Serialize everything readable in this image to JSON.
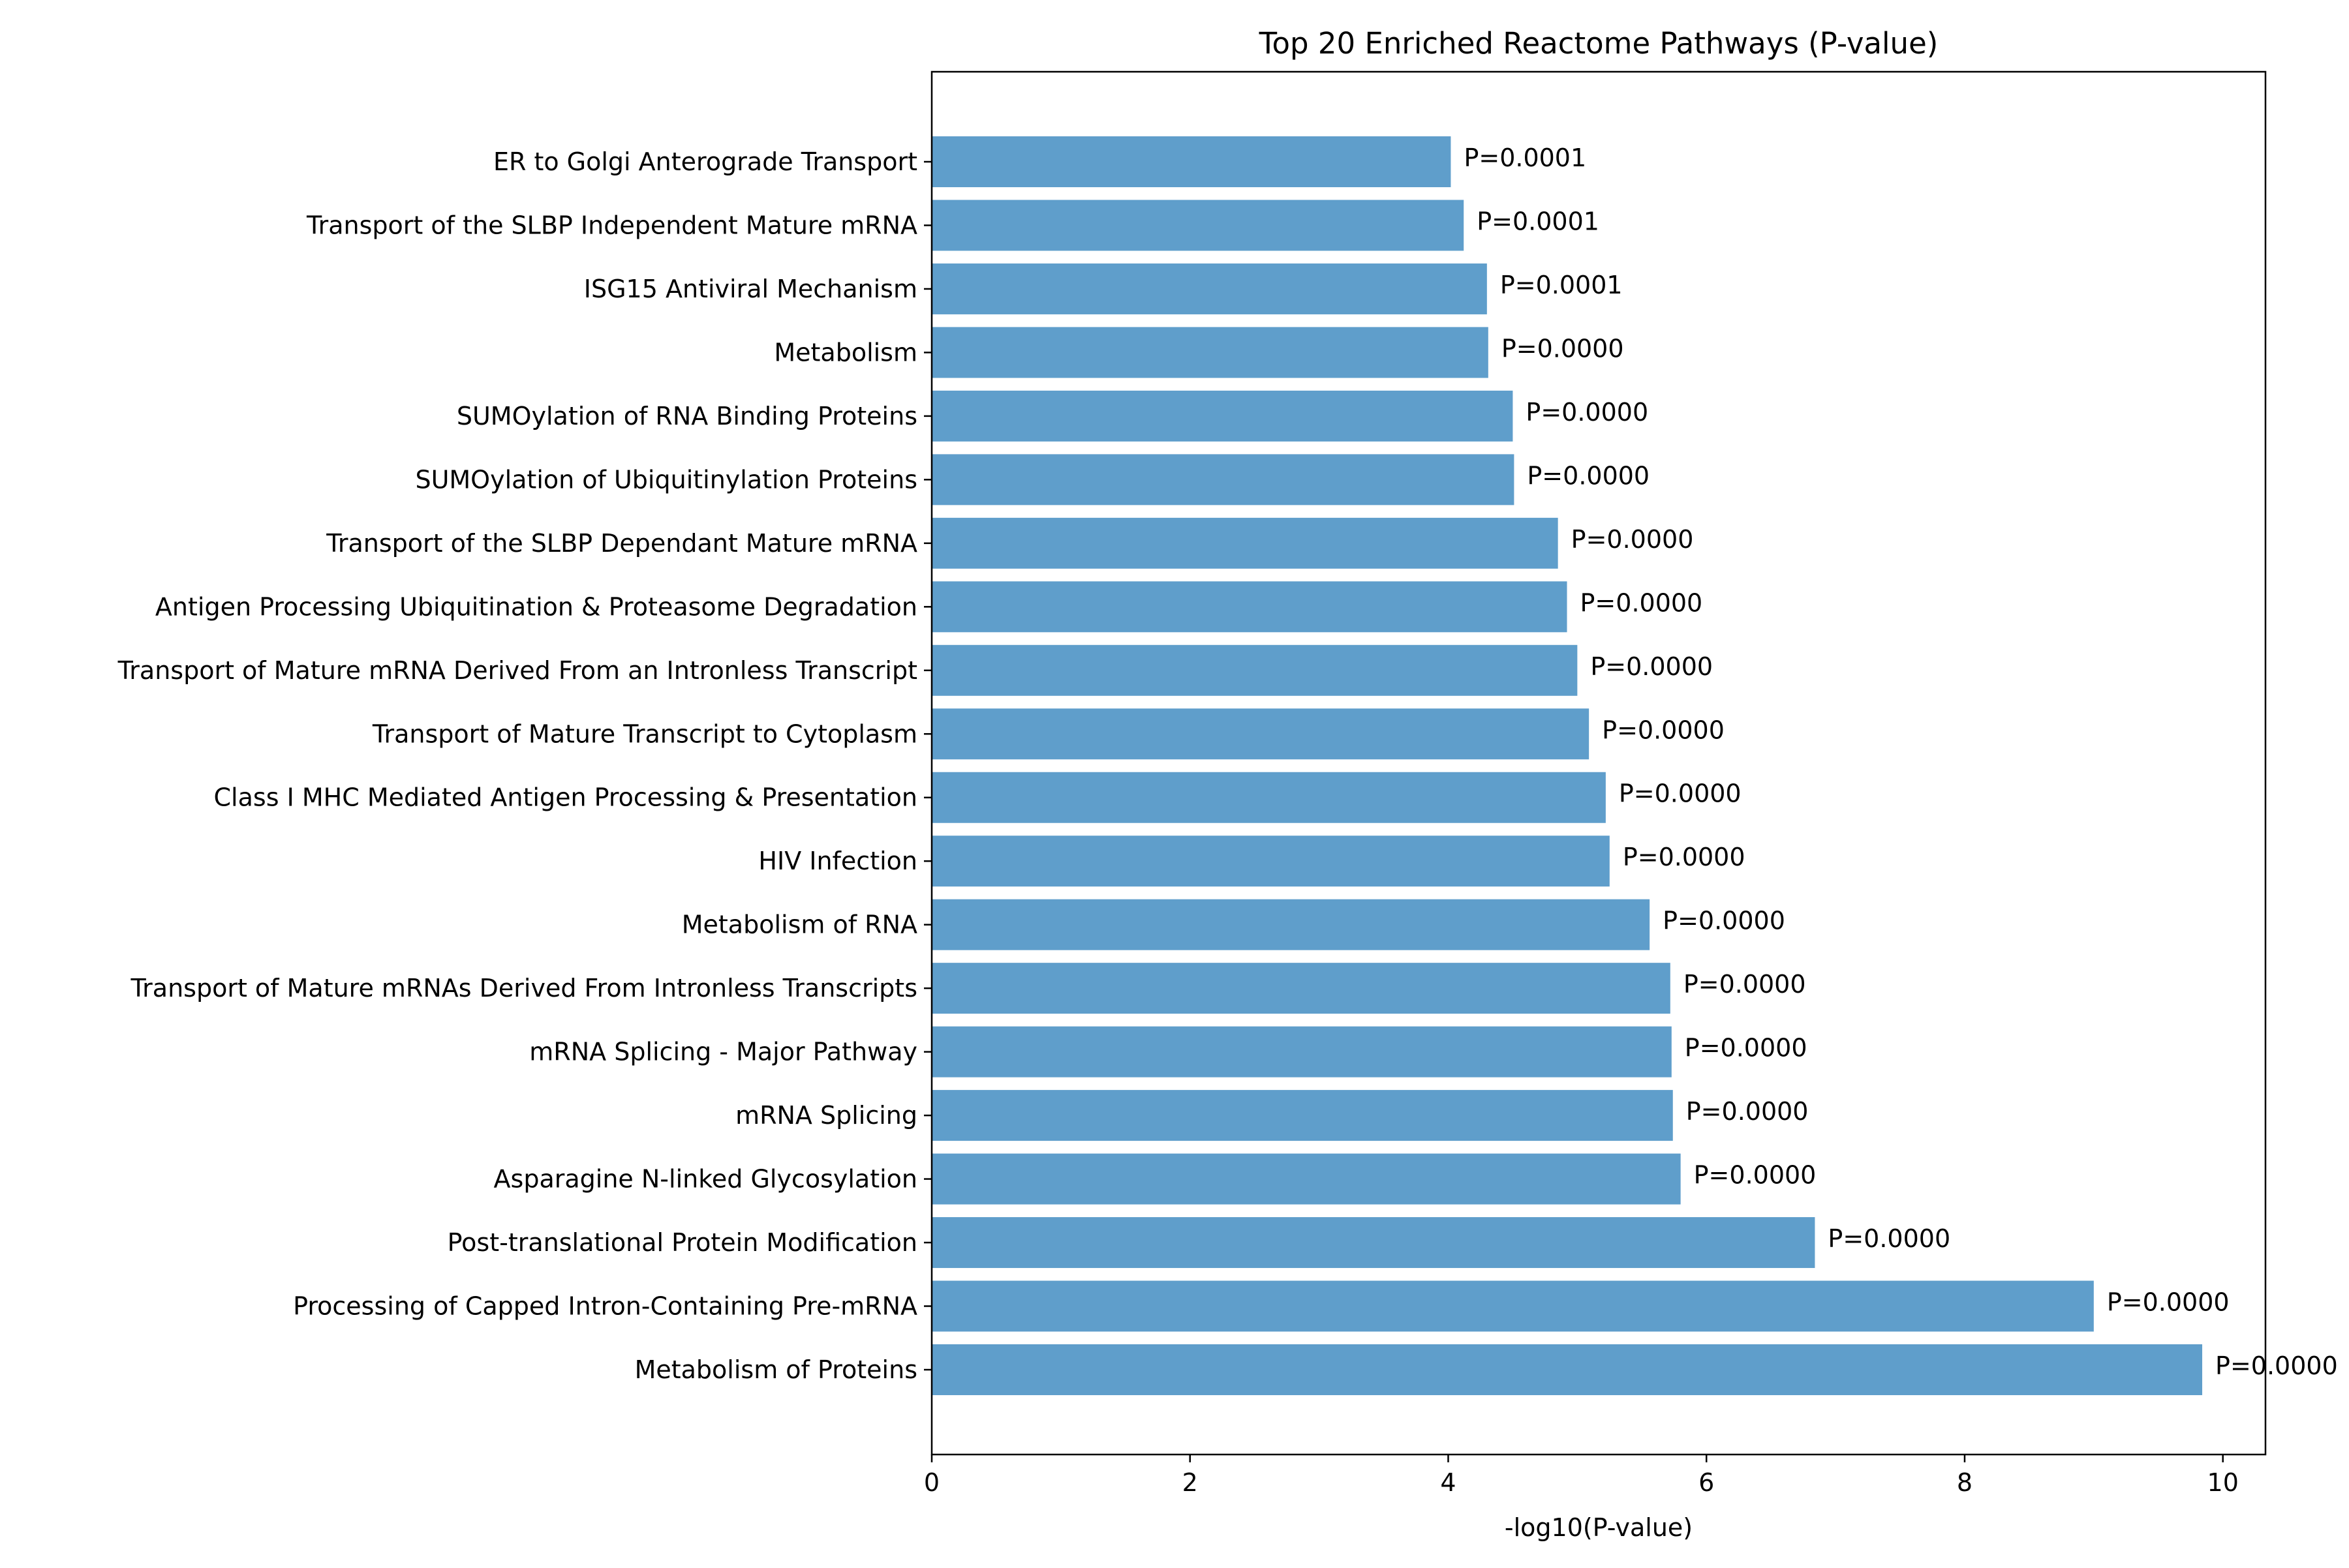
{
  "chart_data": {
    "type": "bar",
    "orientation": "horizontal",
    "title": "Top 20 Enriched Reactome Pathways (P-value)",
    "xlabel": "-log10(P-value)",
    "ylabel": "",
    "xlim": [
      0,
      10.33
    ],
    "xticks": [
      0,
      2,
      4,
      6,
      8,
      10
    ],
    "grid": false,
    "bar_color": "#5f9ecb",
    "categories": [
      "ER to Golgi Anterograde Transport",
      "Transport of the SLBP Independent Mature mRNA",
      "ISG15 Antiviral Mechanism",
      "Metabolism",
      "SUMOylation of RNA Binding Proteins",
      "SUMOylation of Ubiquitinylation Proteins",
      "Transport of the SLBP Dependant Mature mRNA",
      "Antigen Processing Ubiquitination & Proteasome Degradation",
      "Transport of Mature mRNA Derived From an Intronless Transcript",
      "Transport of Mature Transcript to Cytoplasm",
      "Class I MHC Mediated Antigen Processing & Presentation",
      "HIV Infection",
      "Metabolism of RNA",
      "Transport of Mature mRNAs Derived From Intronless Transcripts",
      "mRNA Splicing - Major Pathway",
      "mRNA Splicing",
      "Asparagine N-linked Glycosylation",
      "Post-translational Protein Modification",
      "Processing of Capped Intron-Containing Pre-mRNA",
      "Metabolism of Proteins"
    ],
    "values": [
      4.02,
      4.12,
      4.3,
      4.31,
      4.5,
      4.51,
      4.85,
      4.92,
      5.0,
      5.09,
      5.22,
      5.25,
      5.56,
      5.72,
      5.73,
      5.74,
      5.8,
      6.84,
      9.0,
      9.84
    ],
    "data_labels": [
      "P=0.0001",
      "P=0.0001",
      "P=0.0001",
      "P=0.0000",
      "P=0.0000",
      "P=0.0000",
      "P=0.0000",
      "P=0.0000",
      "P=0.0000",
      "P=0.0000",
      "P=0.0000",
      "P=0.0000",
      "P=0.0000",
      "P=0.0000",
      "P=0.0000",
      "P=0.0000",
      "P=0.0000",
      "P=0.0000",
      "P=0.0000",
      "P=0.0000"
    ]
  }
}
